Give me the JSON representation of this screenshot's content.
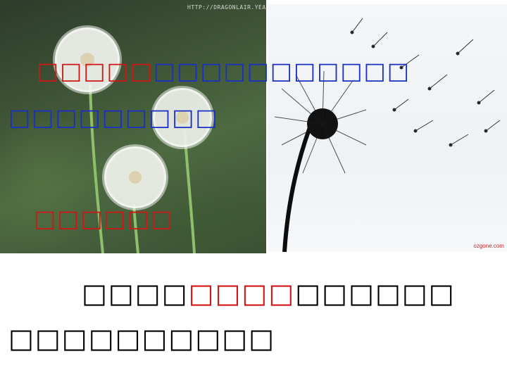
{
  "images": {
    "watermark": "HTTP://DRAGONLAIR.YEAH.NET",
    "corner_logo": "ozgone.com"
  },
  "overlay_text": {
    "line1_red": "□□□□□",
    "line1_blue": "□□□□□□□□□□□",
    "line2_blue": "□□□□□□□□□",
    "line3_red": "□□□□□□"
  },
  "caption": {
    "line1_black_a": "□□□□",
    "line1_red": "□□□□",
    "line1_black_b": "□□□□□□",
    "line2_black": "□□□□□□□□□□"
  },
  "colors": {
    "red": "#d01616",
    "blue": "#1a2fc4",
    "black": "#000000"
  }
}
